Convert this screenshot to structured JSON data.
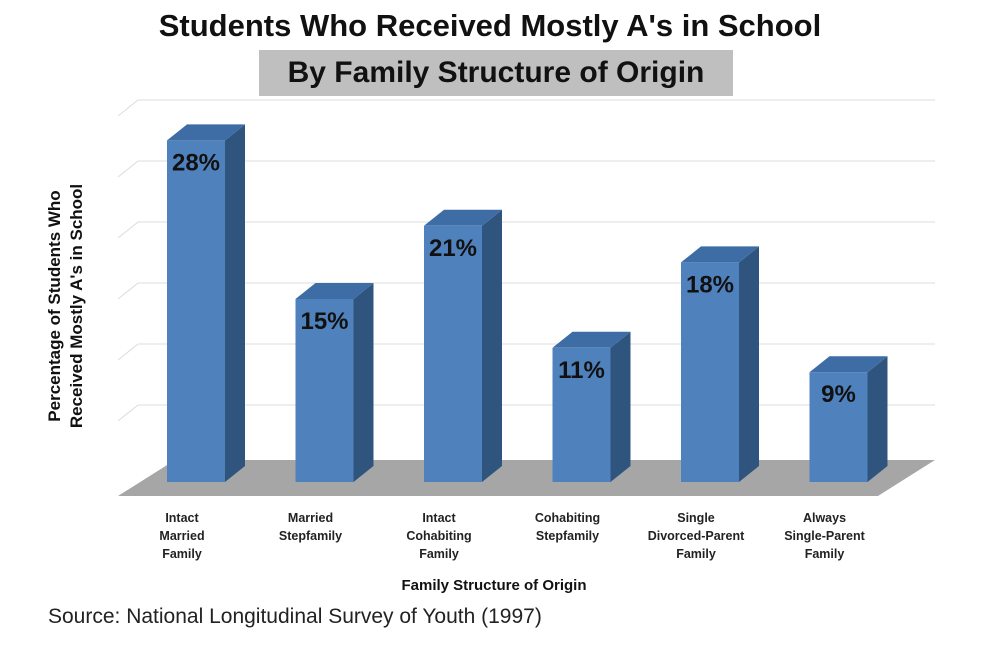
{
  "chart_data": {
    "type": "bar",
    "title": "Students Who Received Mostly A's in School",
    "subtitle": "By Family Structure of Origin",
    "xlabel": "Family Structure of Origin",
    "ylabel": "Percentage of Students Who Received Mostly A's in School",
    "categories": [
      "Intact Married Family",
      "Married Stepfamily",
      "Intact Cohabiting Family",
      "Cohabiting Stepfamily",
      "Single Divorced-Parent Family",
      "Always Single-Parent Family"
    ],
    "category_lines": [
      [
        "Intact",
        "Married",
        "Family"
      ],
      [
        "Married",
        "Stepfamily"
      ],
      [
        "Intact",
        "Cohabiting",
        "Family"
      ],
      [
        "Cohabiting",
        "Stepfamily"
      ],
      [
        "Single",
        "Divorced-Parent",
        "Family"
      ],
      [
        "Always",
        "Single-Parent",
        "Family"
      ]
    ],
    "values": [
      28,
      15,
      21,
      11,
      18,
      9
    ],
    "value_labels": [
      "28%",
      "15%",
      "21%",
      "11%",
      "18%",
      "9%"
    ],
    "ylim": [
      0,
      30
    ],
    "grid": true,
    "legend": "none"
  },
  "source": "Source:  National Longitudinal Survey of Youth (1997)",
  "colors": {
    "bar_front": "#4f81bd",
    "bar_top": "#3e6da6",
    "bar_side": "#2f557f",
    "floor": "#a6a6a6",
    "gridline": "#dcdcdc"
  }
}
